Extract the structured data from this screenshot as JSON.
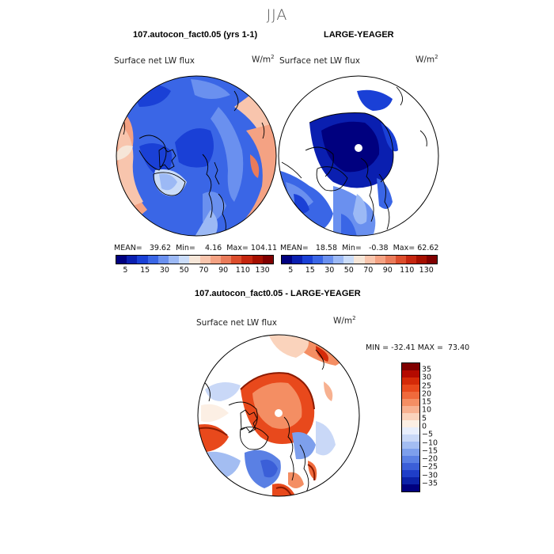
{
  "figure": {
    "season": "JJA",
    "stats_format": "MEAN = {mean}  Min = {min}  Max = {max}"
  },
  "panel_left": {
    "title": "107.autocon_fact0.05 (yrs 1-1)",
    "variable": "Surface net LW flux",
    "units_base": "W/m",
    "units_exp": "2",
    "stats": {
      "mean_label": "MEAN=",
      "mean": "39.62",
      "min_label": "Min=",
      "min": "4.16",
      "max_label": "Max=",
      "max": "104.11"
    }
  },
  "panel_right": {
    "title": "LARGE-YEAGER",
    "variable": "Surface net LW flux",
    "units_base": "W/m",
    "units_exp": "2",
    "stats": {
      "mean_label": "MEAN=",
      "mean": "18.58",
      "min_label": "Min=",
      "min": "-0.38",
      "max_label": "Max=",
      "max": "62.62"
    }
  },
  "panel_diff": {
    "title": "107.autocon_fact0.05 - LARGE-YEAGER",
    "variable": "Surface net LW flux",
    "units_base": "W/m",
    "units_exp": "2",
    "stats_text": "MIN = -32.41 MAX =  73.40"
  },
  "colorbar_top": {
    "colors": [
      "#00007f",
      "#0a1fb0",
      "#1a40d6",
      "#3a66e6",
      "#6a90ef",
      "#9cb9f5",
      "#cadcf9",
      "#f6e6d8",
      "#f8c5ad",
      "#f4a283",
      "#ea7b5a",
      "#dc4d2c",
      "#c5260f",
      "#a50f00",
      "#800000"
    ],
    "ticks": [
      "5",
      "15",
      "30",
      "50",
      "70",
      "90",
      "110",
      "130"
    ]
  },
  "colorbar_diff": {
    "colors": [
      "#800000",
      "#b40a00",
      "#d42a08",
      "#e8491c",
      "#f06a3c",
      "#f48e63",
      "#f7b190",
      "#fad3bc",
      "#fcefe4",
      "#e8eefc",
      "#c9d8f7",
      "#a3bdf2",
      "#7d9fec",
      "#5a80e4",
      "#3b5fd8",
      "#1f3ec8",
      "#0c22a8",
      "#00007f"
    ],
    "ticks": [
      "35",
      "30",
      "25",
      "20",
      "15",
      "10",
      "5",
      "0",
      "-5",
      "-10",
      "-15",
      "-20",
      "-25",
      "-30",
      "-35"
    ]
  },
  "chart_data": {
    "type": "heatmap",
    "projection": "north polar stereographic",
    "season": "JJA",
    "variable": "Surface net LW flux",
    "units": "W/m2",
    "panels": [
      {
        "name": "107.autocon_fact0.05 (yrs 1-1)",
        "mean": 39.62,
        "min": 4.16,
        "max": 104.11,
        "levels": [
          5,
          10,
          15,
          20,
          30,
          40,
          50,
          60,
          70,
          80,
          90,
          100,
          110,
          120,
          130
        ]
      },
      {
        "name": "LARGE-YEAGER",
        "mean": 18.58,
        "min": -0.38,
        "max": 62.62,
        "levels": [
          5,
          10,
          15,
          20,
          30,
          40,
          50,
          60,
          70,
          80,
          90,
          100,
          110,
          120,
          130
        ]
      },
      {
        "name": "107.autocon_fact0.05 - LARGE-YEAGER",
        "min": -32.41,
        "max": 73.4,
        "levels": [
          -35,
          -30,
          -25,
          -20,
          -15,
          -10,
          -5,
          0,
          5,
          10,
          15,
          20,
          25,
          30,
          35
        ]
      }
    ]
  }
}
